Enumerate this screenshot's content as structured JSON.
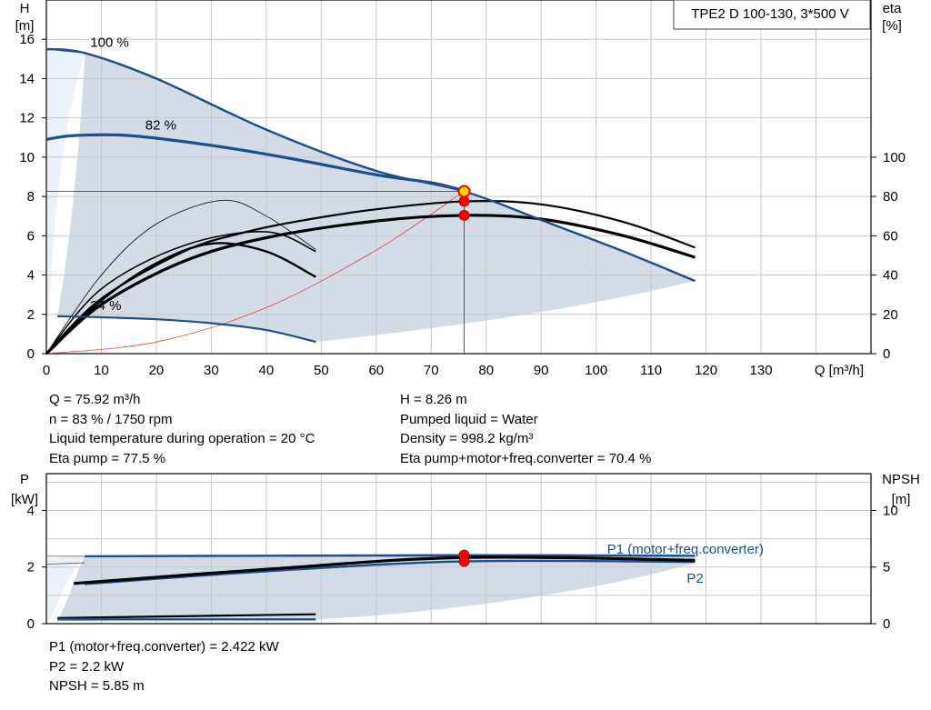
{
  "chart_data": [
    {
      "type": "line",
      "title": "TPE2 D 100-130, 3*500 V",
      "xlabel": "Q [m³/h]",
      "ylabel_left": [
        "H",
        "[m]"
      ],
      "ylabel_right": [
        "eta",
        "[%]"
      ],
      "xlim": [
        0,
        150
      ],
      "ylim_left": [
        0,
        18
      ],
      "ylim_right": [
        0,
        180
      ],
      "x_ticks": [
        0,
        10,
        20,
        30,
        40,
        50,
        60,
        70,
        80,
        90,
        100,
        110,
        120,
        130
      ],
      "y_ticks_left": [
        0,
        2,
        4,
        6,
        8,
        10,
        12,
        14,
        16
      ],
      "y_ticks_right": [
        0,
        20,
        40,
        60,
        80,
        100
      ],
      "grid": true,
      "speed_labels": [
        {
          "text": "100 %",
          "x": 6,
          "y": 15.8
        },
        {
          "text": "82 %",
          "x": 16,
          "y": 11.6
        },
        {
          "text": "34 %",
          "x": 6,
          "y": 2.4
        }
      ],
      "series": [
        {
          "role": "head",
          "color": "#1f4e8c",
          "x": [
            0,
            7,
            20,
            40,
            60,
            76,
            90,
            105,
            118
          ],
          "y": [
            15.5,
            15.3,
            14.0,
            11.4,
            9.3,
            8.26,
            6.8,
            5.2,
            3.7
          ]
        },
        {
          "role": "head",
          "color": "#1f4e8c",
          "x": [
            0,
            5,
            15,
            30,
            45,
            60,
            70,
            76
          ],
          "y": [
            10.9,
            11.1,
            11.1,
            10.6,
            9.9,
            9.1,
            8.7,
            8.3
          ]
        },
        {
          "role": "head",
          "color": "#1f4e8c",
          "x": [
            2,
            10,
            20,
            30,
            40,
            49
          ],
          "y": [
            1.9,
            1.85,
            1.75,
            1.55,
            1.2,
            0.6
          ]
        },
        {
          "role": "efficiency",
          "color": "#000000",
          "x": [
            0,
            10,
            25,
            35,
            45,
            60,
            76,
            90,
            105,
            118
          ],
          "y": [
            0,
            28,
            52,
            61,
            67,
            73.5,
            77.5,
            76,
            67,
            54
          ]
        },
        {
          "role": "efficiency",
          "color": "#000000",
          "x": [
            0,
            10,
            25,
            40,
            60,
            76,
            90,
            105,
            118
          ],
          "y": [
            0,
            25,
            47,
            59,
            67.5,
            70.4,
            68.5,
            60,
            49
          ]
        },
        {
          "role": "efficiency",
          "color": "#000000",
          "x": [
            0,
            10,
            20,
            30,
            40,
            49
          ],
          "y": [
            0,
            27,
            46,
            56,
            52,
            39
          ]
        },
        {
          "role": "efficiency",
          "color": "#000000",
          "x": [
            0,
            10,
            20,
            32,
            40,
            49
          ],
          "y": [
            0,
            40,
            66,
            78,
            70,
            53
          ]
        },
        {
          "role": "system",
          "color": "#e8413c",
          "x": [
            0,
            20,
            40,
            60,
            76
          ],
          "y": [
            0,
            0.59,
            2.34,
            5.27,
            8.26
          ]
        }
      ],
      "duty_point": {
        "Q": 75.92,
        "H": 8.26,
        "eta_pump": 77.5,
        "eta_total": 70.4
      }
    },
    {
      "type": "line",
      "ylabel_left": [
        "P",
        "[kW]"
      ],
      "ylabel_right": [
        "NPSH",
        "[m]"
      ],
      "xlim": [
        0,
        150
      ],
      "ylim_left": [
        0,
        5.3
      ],
      "ylim_right": [
        0,
        13.25
      ],
      "y_ticks_left": [
        0,
        2,
        4
      ],
      "y_ticks_right": [
        0,
        5,
        10
      ],
      "grid": true,
      "series": [
        {
          "name": "P1 (motor+freq.converter)",
          "color": "#1f4e8c",
          "x": [
            7,
            40,
            76,
            118
          ],
          "y": [
            2.38,
            2.4,
            2.42,
            2.4
          ]
        },
        {
          "name": "P2",
          "color": "#1f4e8c",
          "x": [
            7,
            40,
            76,
            118
          ],
          "y": [
            1.4,
            1.85,
            2.2,
            2.18
          ]
        },
        {
          "role": "npsh",
          "color": "#000000",
          "x": [
            5,
            40,
            76,
            118
          ],
          "y": [
            3.55,
            4.8,
            5.85,
            5.6
          ]
        },
        {
          "role": "power-34",
          "color": "#000000",
          "x": [
            2,
            49
          ],
          "y": [
            0.2,
            0.33
          ]
        }
      ]
    }
  ],
  "readout_top_left": [
    "Q = 75.92 m³/h",
    "n = 83 % / 1750 rpm",
    "Liquid temperature during operation = 20 °C",
    "Eta pump = 77.5 %"
  ],
  "readout_top_right": [
    "H = 8.26 m",
    "Pumped liquid = Water",
    "Density = 998.2 kg/m³",
    "Eta pump+motor+freq.converter = 70.4 %"
  ],
  "readout_bottom": [
    "P1 (motor+freq.converter) = 2.422 kW",
    "P2 = 2.2 kW",
    "NPSH = 5.85 m"
  ],
  "colors": {
    "curve_blue": "#1f4e8c",
    "area_fill": "#d3dce6",
    "area_light": "#eaf1f8",
    "duty_red": "#ff0000",
    "duty_yellow": "#ffd700",
    "system_red": "#e8413c",
    "grid": "#c8c8c8"
  }
}
